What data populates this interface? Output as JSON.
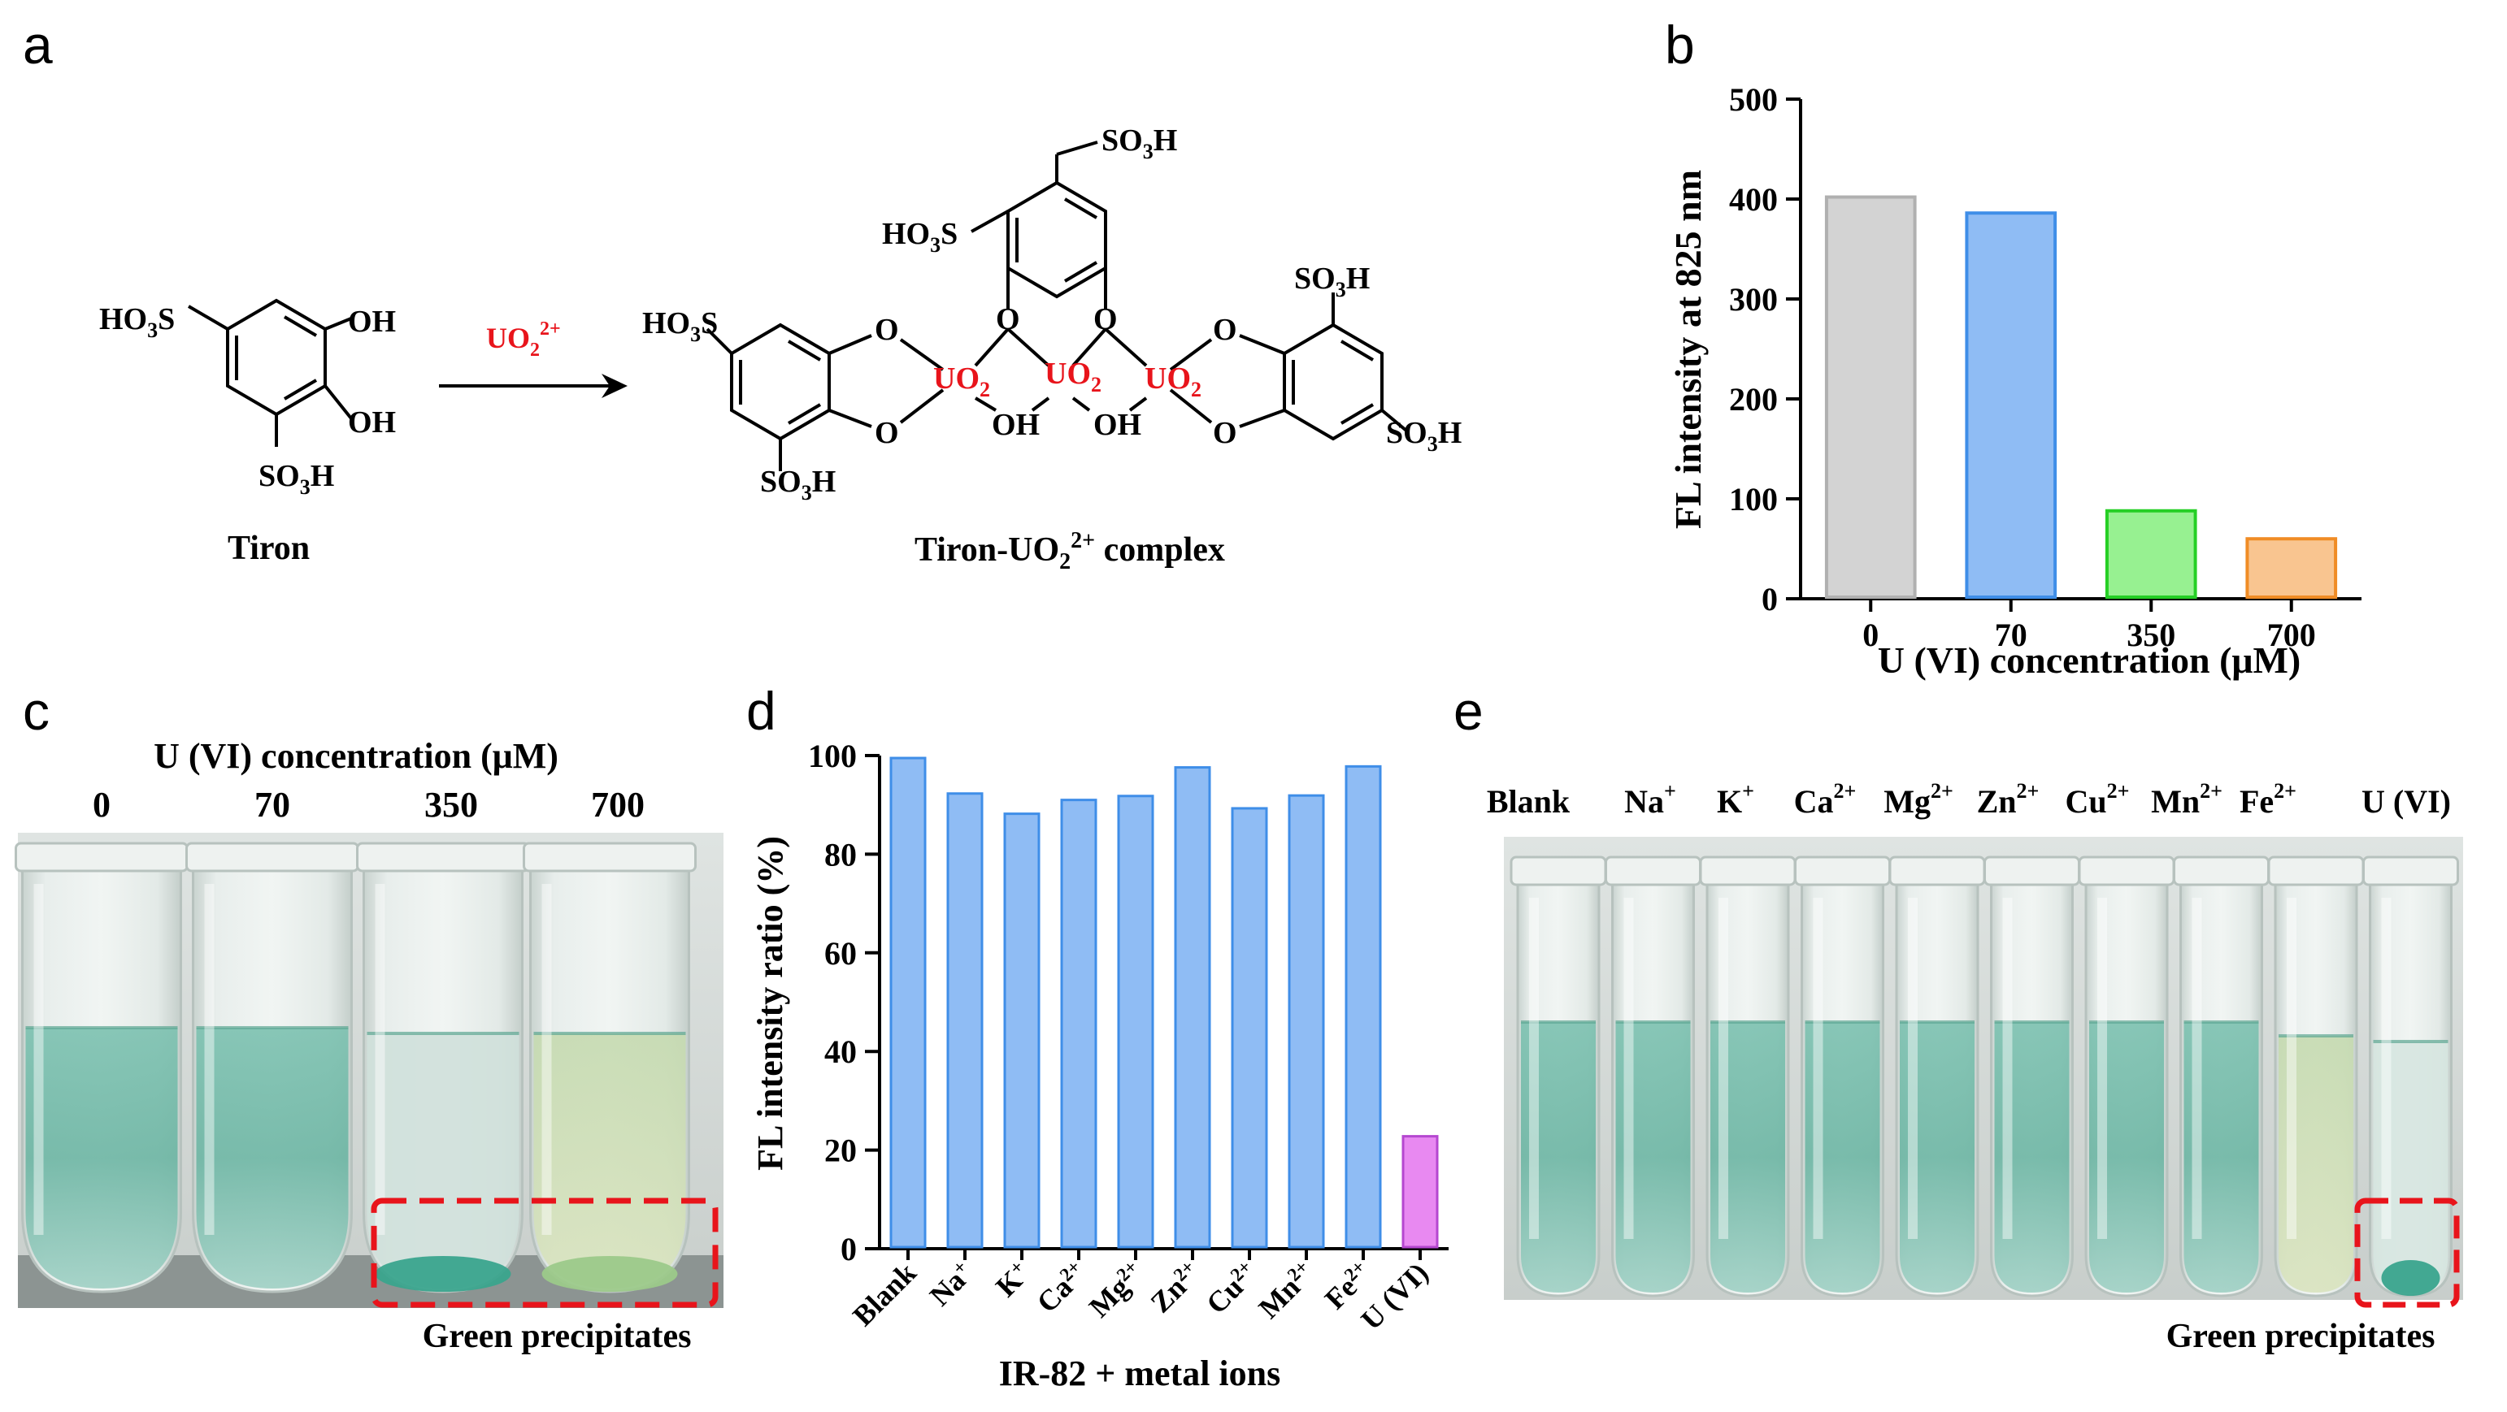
{
  "panels": {
    "a": "a",
    "b": "b",
    "c": "c",
    "d": "d",
    "e": "e"
  },
  "scheme": {
    "tiron_name": "Tiron",
    "reagent": "UO",
    "reagent_sub": "2",
    "reagent_sup": "2+",
    "complex_name_main": "Tiron-UO",
    "complex_name_sub": "2",
    "complex_name_sup": "2+",
    "complex_name_tail": " complex",
    "hso3": "HO",
    "so3h": "SO",
    "oh": "OH",
    "o": "O",
    "uo2_main": "UO",
    "uo2_sub": "2",
    "colors": {
      "reagent": "#e8141b"
    }
  },
  "photo_c": {
    "title": "U (VI) concentration (μM)",
    "tube_labels": [
      "0",
      "70",
      "350",
      "700"
    ],
    "annotation": "Green precipitates"
  },
  "photo_e": {
    "tube_labels": [
      {
        "base": "Blank",
        "sup": ""
      },
      {
        "base": "Na",
        "sup": "+"
      },
      {
        "base": "K",
        "sup": "+"
      },
      {
        "base": "Ca",
        "sup": "2+"
      },
      {
        "base": "Mg",
        "sup": "2+"
      },
      {
        "base": "Zn",
        "sup": "2+"
      },
      {
        "base": "Cu",
        "sup": "2+"
      },
      {
        "base": "Mn",
        "sup": "2+"
      },
      {
        "base": "Fe",
        "sup": "2+"
      },
      {
        "base": "U (VI)",
        "sup": ""
      }
    ],
    "annotation": "Green precipitates"
  },
  "chart_data": [
    {
      "panel": "b",
      "type": "bar",
      "categories": [
        "0",
        "70",
        "350",
        "700"
      ],
      "values": [
        402,
        386,
        88,
        60
      ],
      "xlabel": "U (VI) concentration (μM)",
      "ylabel": "FL intensity at 825 nm",
      "ylim": [
        0,
        500
      ],
      "yticks": [
        "0",
        "100",
        "200",
        "300",
        "400",
        "500"
      ],
      "colors": {
        "fill": [
          "#d3d3d3",
          "#8fbcf4",
          "#97f191",
          "#f9c590"
        ],
        "stroke": [
          "#b0b0b0",
          "#3f8ee8",
          "#25cf25",
          "#f08c25"
        ]
      },
      "grid": false
    },
    {
      "panel": "d",
      "type": "bar",
      "categories": [
        {
          "base": "Blank",
          "sup": ""
        },
        {
          "base": "Na",
          "sup": "+"
        },
        {
          "base": "K",
          "sup": "+"
        },
        {
          "base": "Ca",
          "sup": "2+"
        },
        {
          "base": "Mg",
          "sup": "2+"
        },
        {
          "base": "Zn",
          "sup": "2+"
        },
        {
          "base": "Cu",
          "sup": "2+"
        },
        {
          "base": "Mn",
          "sup": "2+"
        },
        {
          "base": "Fe",
          "sup": "2+"
        },
        {
          "base": "U (VI)",
          "sup": ""
        }
      ],
      "values": [
        99.5,
        92.3,
        88.2,
        91.0,
        91.8,
        97.6,
        89.3,
        91.9,
        97.8,
        22.8
      ],
      "xlabel": "IR-82 + metal ions",
      "ylabel": "FL intensity ratio (%)",
      "ylim": [
        0,
        100
      ],
      "yticks": [
        "0",
        "20",
        "40",
        "60",
        "80",
        "100"
      ],
      "colors": {
        "fill": [
          "#8fbcf4",
          "#8fbcf4",
          "#8fbcf4",
          "#8fbcf4",
          "#8fbcf4",
          "#8fbcf4",
          "#8fbcf4",
          "#8fbcf4",
          "#8fbcf4",
          "#e889f1"
        ],
        "stroke": [
          "#3f8ee8",
          "#3f8ee8",
          "#3f8ee8",
          "#3f8ee8",
          "#3f8ee8",
          "#3f8ee8",
          "#3f8ee8",
          "#3f8ee8",
          "#3f8ee8",
          "#b547d0"
        ]
      },
      "grid": false
    }
  ]
}
